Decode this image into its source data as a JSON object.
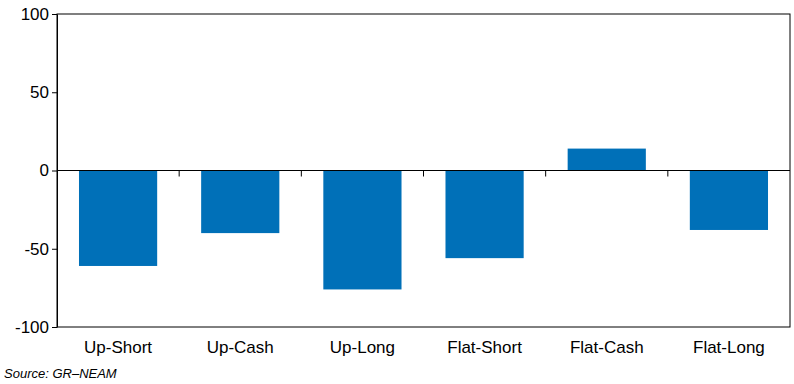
{
  "chart_data": {
    "type": "bar",
    "categories": [
      "Up-Short",
      "Up-Cash",
      "Up-Long",
      "Flat-Short",
      "Flat-Cash",
      "Flat-Long"
    ],
    "values": [
      -61,
      -40,
      -76,
      -56,
      14,
      -38
    ],
    "color": "#0070b8",
    "ylim": [
      -100,
      100
    ],
    "yticks": [
      -100,
      -50,
      0,
      50,
      100
    ],
    "grid": false,
    "source": "Source: GR–NEAM"
  }
}
